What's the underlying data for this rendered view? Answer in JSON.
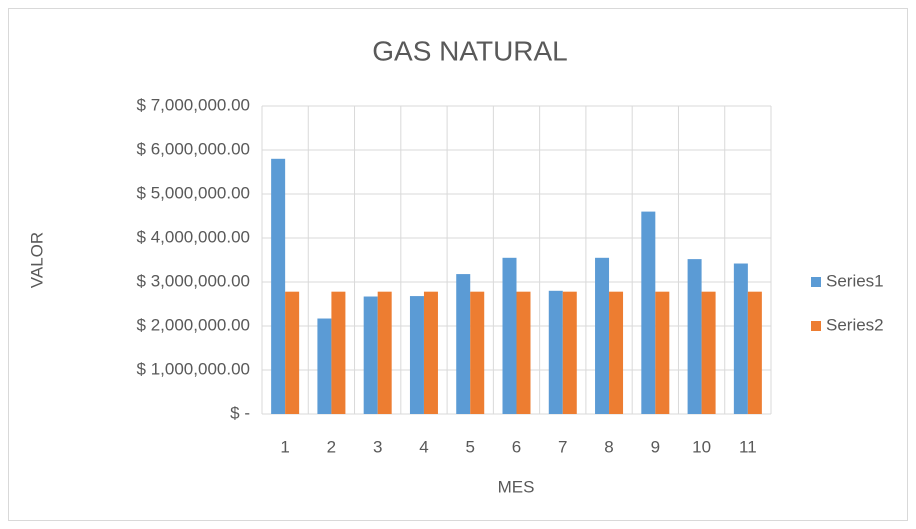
{
  "chart_data": {
    "type": "bar",
    "title": "GAS NATURAL",
    "x_label": "MES",
    "y_label": "VALOR",
    "categories": [
      "1",
      "2",
      "3",
      "4",
      "5",
      "6",
      "7",
      "8",
      "9",
      "10",
      "11"
    ],
    "series": [
      {
        "name": "Series1",
        "color": "#5b9bd5",
        "values": [
          5800000,
          2170000,
          2670000,
          2680000,
          3180000,
          3550000,
          2800000,
          3550000,
          4600000,
          3520000,
          3420000
        ]
      },
      {
        "name": "Series2",
        "color": "#ed7d31",
        "values": [
          2780000,
          2780000,
          2780000,
          2780000,
          2780000,
          2780000,
          2780000,
          2780000,
          2780000,
          2780000,
          2780000
        ]
      }
    ],
    "ylim": [
      0,
      7000000
    ],
    "yticks": [
      {
        "value": 0,
        "label": "$ -"
      },
      {
        "value": 1000000,
        "label": "$ 1,000,000.00"
      },
      {
        "value": 2000000,
        "label": "$ 2,000,000.00"
      },
      {
        "value": 3000000,
        "label": "$ 3,000,000.00"
      },
      {
        "value": 4000000,
        "label": "$ 4,000,000.00"
      },
      {
        "value": 5000000,
        "label": "$ 5,000,000.00"
      },
      {
        "value": 6000000,
        "label": "$ 6,000,000.00"
      },
      {
        "value": 7000000,
        "label": "$ 7,000,000.00"
      }
    ],
    "grid": true,
    "legend": "right"
  }
}
